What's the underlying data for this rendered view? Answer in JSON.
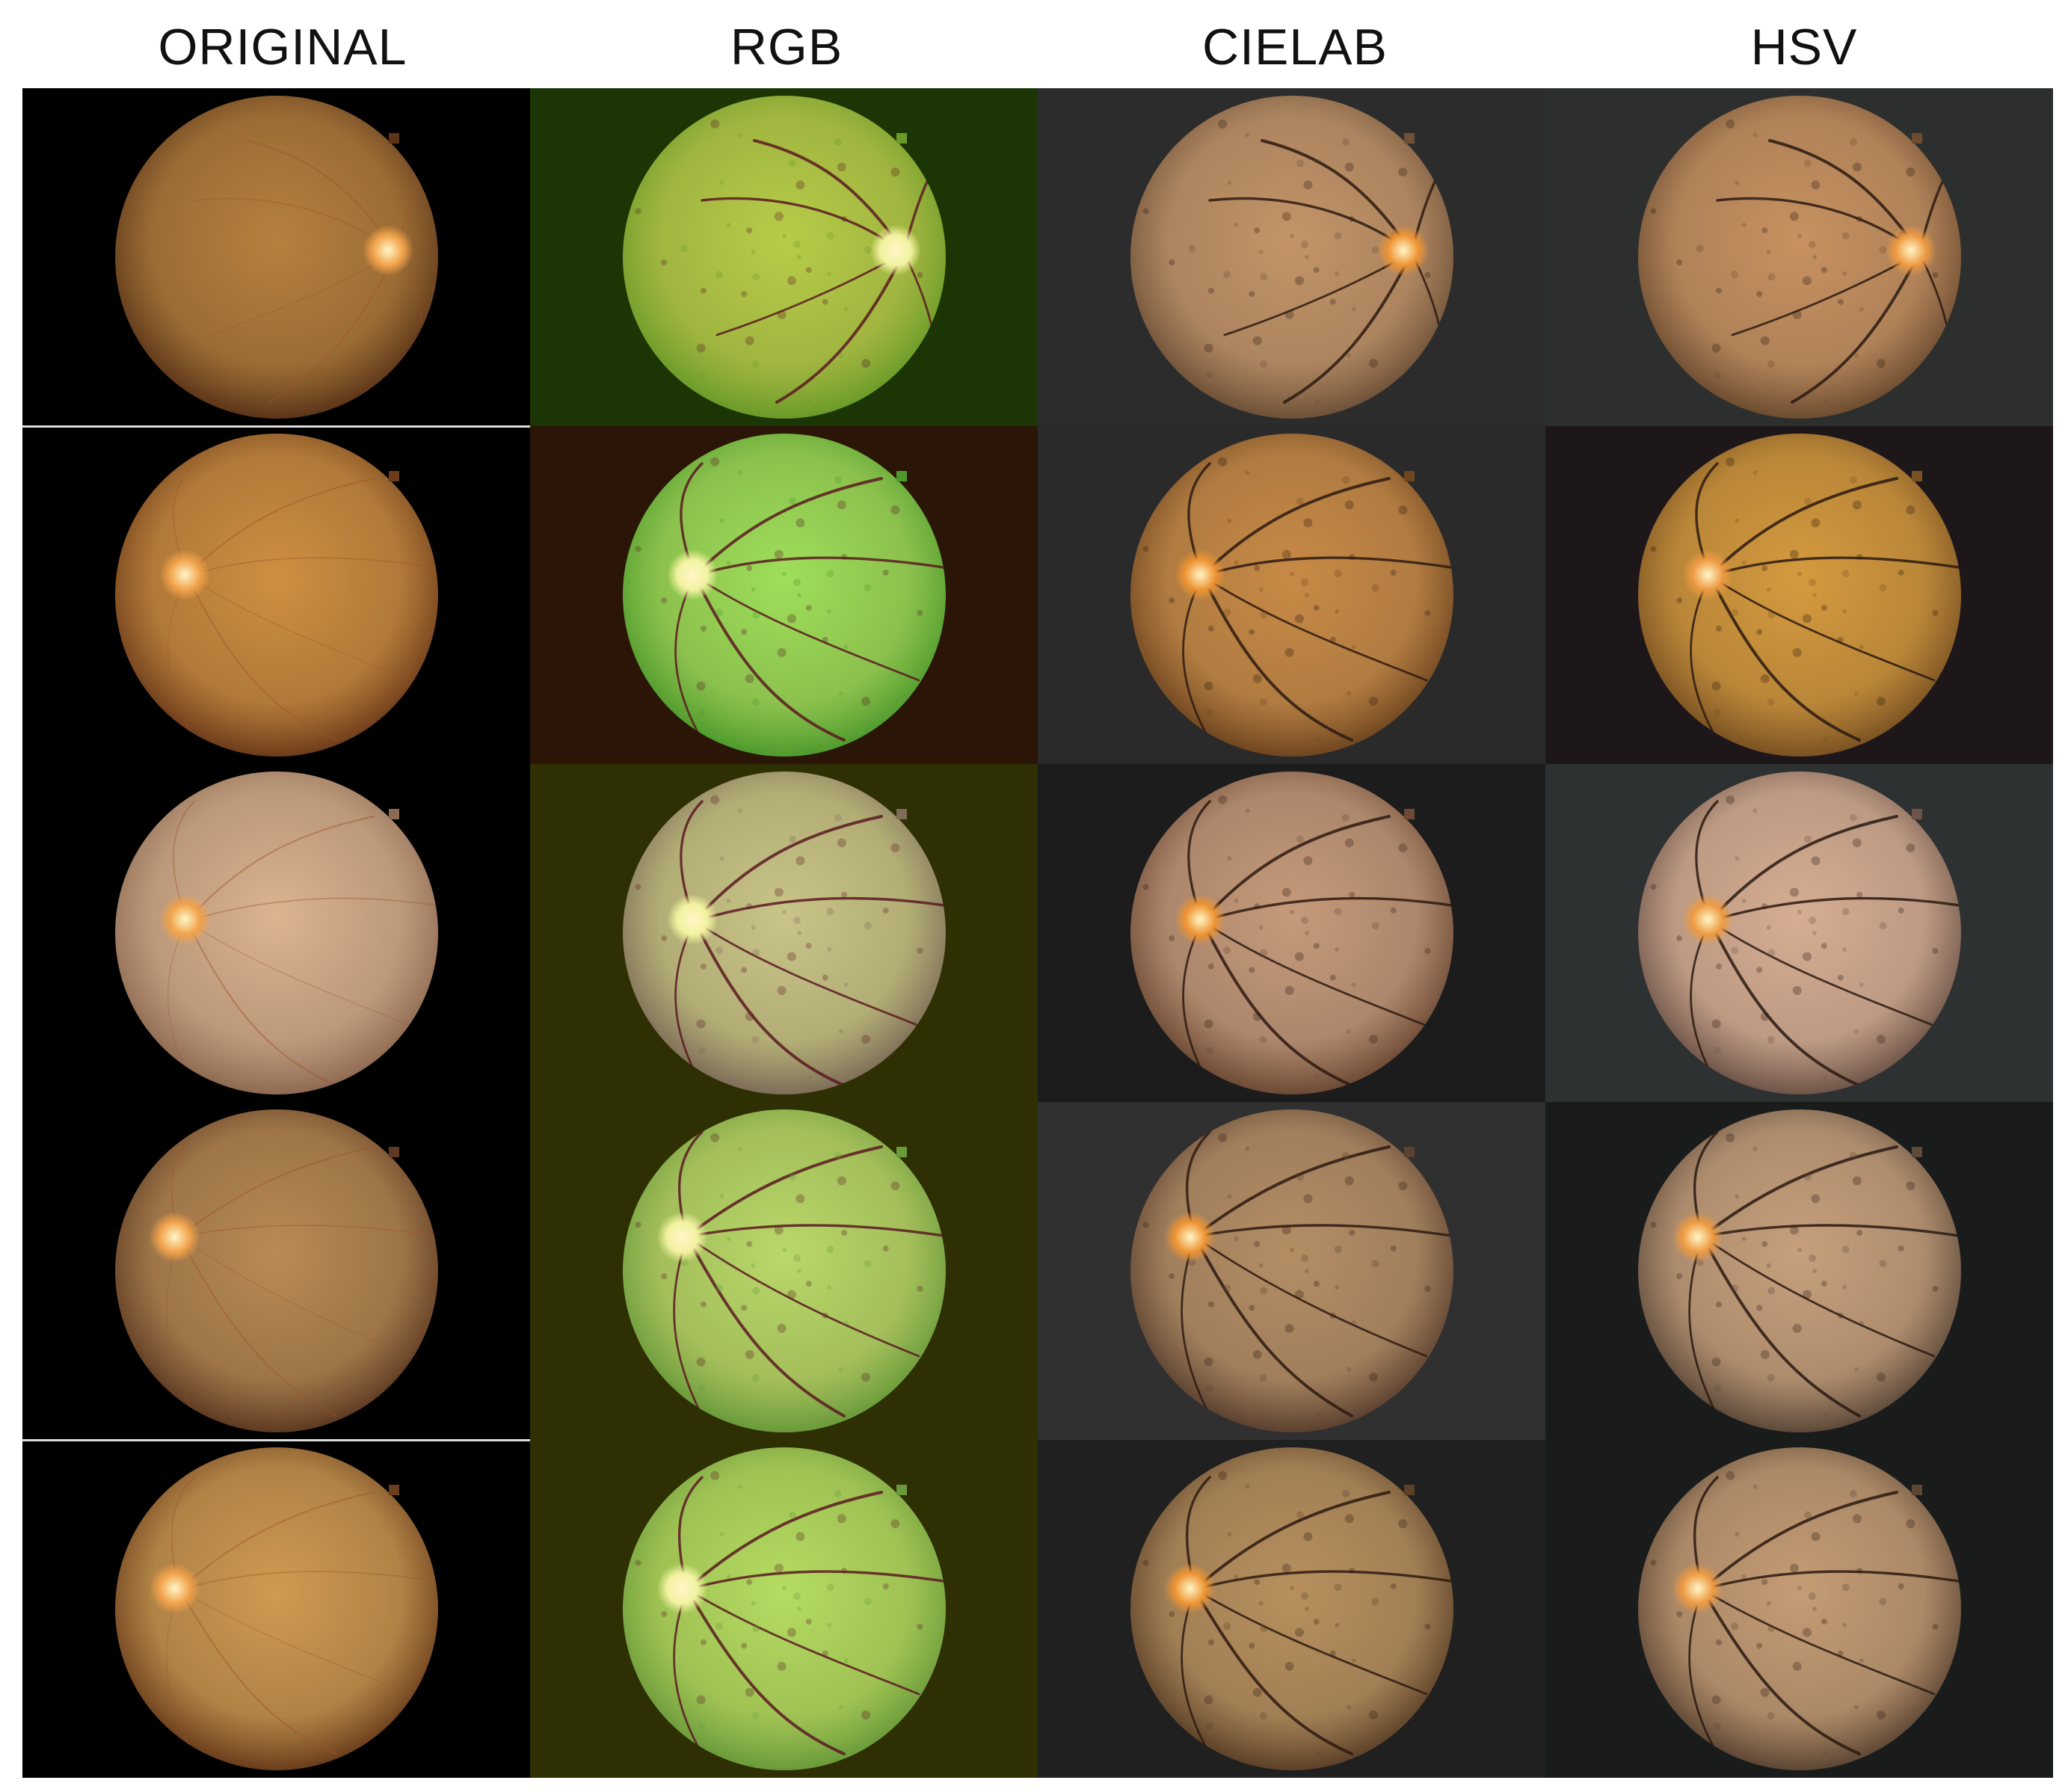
{
  "columns": [
    {
      "key": "original",
      "title": "ORIGINAL"
    },
    {
      "key": "rgb",
      "title": "RGB"
    },
    {
      "key": "cielab",
      "title": "CIELAB"
    },
    {
      "key": "hsv",
      "title": "HSV"
    }
  ],
  "rows": 5,
  "palettes": {
    "original": {
      "bg": [
        "#000000",
        "#000000",
        "#000000",
        "#000000",
        "#000000"
      ],
      "inner": [
        "#b6803e",
        "#cf8f42",
        "#dcb490",
        "#b98a55",
        "#cf9a52"
      ],
      "outer": [
        "#5c3519",
        "#6e3c1b",
        "#8e6a52",
        "#5e3a22",
        "#6a3d1c"
      ],
      "vessel": "#a0542a",
      "disc": "#f1a24a"
    },
    "rgb": {
      "bg": [
        "#1c3505",
        "#2a1507",
        "#2e2f03",
        "#2e2f03",
        "#2e2f03"
      ],
      "inner": [
        "#b8cc4a",
        "#9edf5a",
        "#c9c489",
        "#b9d86a",
        "#b4dc62"
      ],
      "outer": [
        "#6a9a28",
        "#4e9a2c",
        "#7e6d58",
        "#6a9a3a",
        "#6a9a3a"
      ],
      "vessel": "#5a1a22",
      "disc": "#f2f2a0"
    },
    "cielab": {
      "bg": [
        "#2c2c2c",
        "#2a2a2a",
        "#1c1c1c",
        "#303030",
        "#202020"
      ],
      "inner": [
        "#c39468",
        "#c88a45",
        "#c69a7a",
        "#b48d64",
        "#b8905e"
      ],
      "outer": [
        "#6e5138",
        "#704620",
        "#6d4a35",
        "#5c4130",
        "#5c4128"
      ],
      "vessel": "#2e1a12",
      "disc": "#ee9433"
    },
    "hsv": {
      "bg": [
        "#2d2f2f",
        "#1e171a",
        "#2e3131",
        "#1a1c1c",
        "#1a1c1c"
      ],
      "inner": [
        "#c79160",
        "#d59a3e",
        "#d6ad92",
        "#c7a07c",
        "#c59c74"
      ],
      "outer": [
        "#6d4c30",
        "#7a5222",
        "#6e5448",
        "#5e4a3a",
        "#5d4634"
      ],
      "vessel": "#2a1a12",
      "disc": "#ee9a42"
    }
  }
}
